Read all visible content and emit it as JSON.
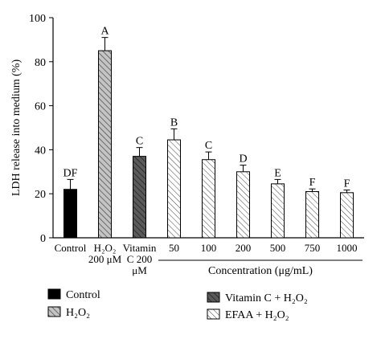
{
  "chart_data": {
    "type": "bar",
    "title": "",
    "ylabel": "LDH release into medium (%)",
    "xlabel_group": "Concentration (μg/mL)",
    "ylim": [
      0,
      100
    ],
    "yticks": [
      "0",
      "20",
      "40",
      "60",
      "80",
      "100"
    ],
    "categories": [
      {
        "lines": [
          "Control"
        ]
      },
      {
        "lines": [
          "H₂O₂",
          "200 μM"
        ]
      },
      {
        "lines": [
          "Vitamin",
          "C 200",
          "μM"
        ]
      },
      {
        "lines": [
          "50"
        ]
      },
      {
        "lines": [
          "100"
        ]
      },
      {
        "lines": [
          "200"
        ]
      },
      {
        "lines": [
          "500"
        ]
      },
      {
        "lines": [
          "750"
        ]
      },
      {
        "lines": [
          "1000"
        ]
      }
    ],
    "bars": [
      {
        "value": 22,
        "error": 4.5,
        "letter": "DF",
        "group": "control"
      },
      {
        "value": 85,
        "error": 6,
        "letter": "A",
        "group": "h2o2"
      },
      {
        "value": 37,
        "error": 4,
        "letter": "C",
        "group": "vitc"
      },
      {
        "value": 44.5,
        "error": 5,
        "letter": "B",
        "group": "efaa"
      },
      {
        "value": 35.5,
        "error": 3.5,
        "letter": "C",
        "group": "efaa"
      },
      {
        "value": 30,
        "error": 3,
        "letter": "D",
        "group": "efaa"
      },
      {
        "value": 24.5,
        "error": 2,
        "letter": "E",
        "group": "efaa"
      },
      {
        "value": 21,
        "error": 1.2,
        "letter": "F",
        "group": "efaa"
      },
      {
        "value": 20.5,
        "error": 1.2,
        "letter": "F",
        "group": "efaa"
      }
    ],
    "legend": {
      "position": "bottom",
      "items": [
        {
          "label": "Control",
          "group": "control"
        },
        {
          "label": "H₂O₂",
          "group": "h2o2"
        },
        {
          "label": "Vitamin C + H₂O₂",
          "group": "vitc"
        },
        {
          "label": "EFAA + H₂O₂",
          "group": "efaa"
        }
      ]
    },
    "colors": {
      "control": "#000000",
      "h2o2": "#a9a9a9",
      "vitc": "#555555",
      "efaa": "#ffffff"
    }
  }
}
